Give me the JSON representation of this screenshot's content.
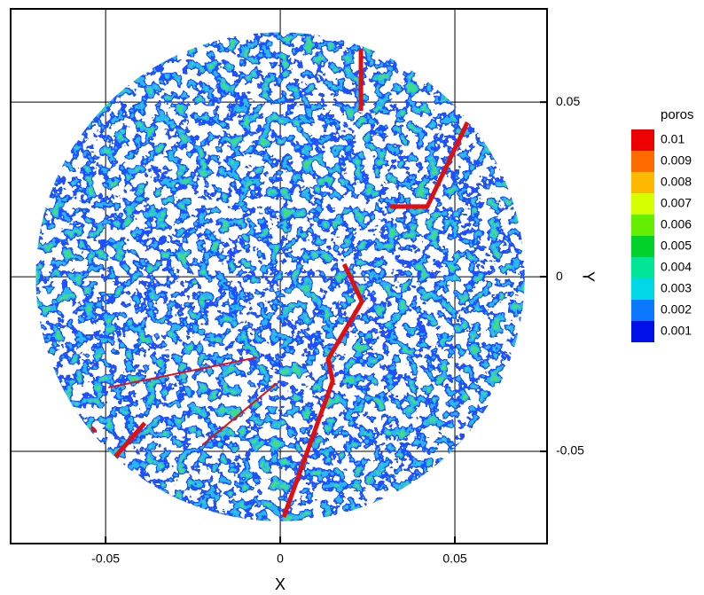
{
  "chart_data": {
    "type": "contour",
    "xlabel": "X",
    "ylabel": "Y",
    "xlim": [
      -0.0772,
      0.0764
    ],
    "ylim": [
      -0.0764,
      0.0767
    ],
    "xticks": [
      -0.05,
      0,
      0.05
    ],
    "yticks": [
      -0.05,
      0,
      0.05
    ],
    "grid": true,
    "domain_radius": 0.07,
    "legend": {
      "title": "poros",
      "levels": [
        0.01,
        0.009,
        0.008,
        0.007,
        0.006,
        0.005,
        0.004,
        0.003,
        0.002,
        0.001
      ],
      "colors": [
        "#ee0000",
        "#ff6a00",
        "#ffb800",
        "#d6ff00",
        "#66ee00",
        "#00d22a",
        "#00e596",
        "#00d8e6",
        "#0a78ff",
        "#0010e8"
      ]
    },
    "fractures": {
      "color": "#e01010",
      "lines": [
        {
          "x": [
            0.0231,
            0.0231
          ],
          "y": [
            0.0652,
            0.0475
          ]
        },
        {
          "x": [
            0.0315,
            0.0421,
            0.0536
          ],
          "y": [
            0.0201,
            0.0201,
            0.0442
          ]
        },
        {
          "x": [
            0.0183,
            0.0234,
            0.0137,
            0.015,
            0.001
          ],
          "y": [
            0.0036,
            -0.0071,
            -0.0236,
            -0.0299,
            -0.0688
          ]
        },
        {
          "x": [
            -0.0066,
            -0.0492
          ],
          "y": [
            -0.0231,
            -0.0317
          ]
        },
        {
          "x": [
            -0.001,
            -0.0223
          ],
          "y": [
            -0.0305,
            -0.0482
          ]
        },
        {
          "x": [
            -0.0388,
            -0.0472
          ],
          "y": [
            -0.0419,
            -0.0515
          ]
        },
        {
          "x": [
            -0.0541,
            -0.0528
          ],
          "y": [
            -0.0431,
            -0.0444
          ]
        }
      ]
    }
  }
}
